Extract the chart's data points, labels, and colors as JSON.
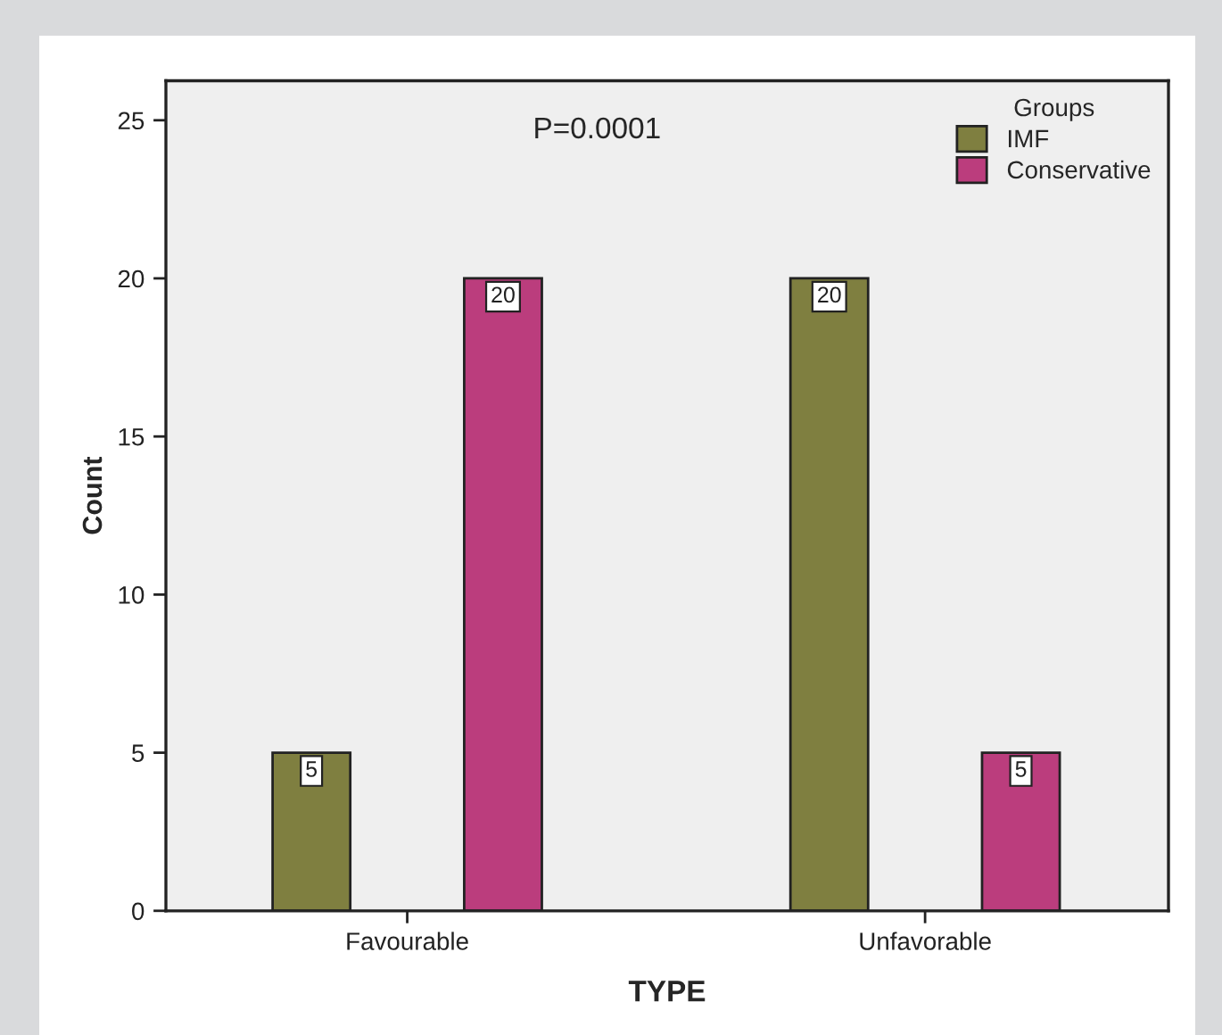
{
  "chart_data": {
    "type": "bar",
    "xlabel": "TYPE",
    "ylabel": "Count",
    "legend_title": "Groups",
    "categories": [
      "Favourable",
      "Unfavorable"
    ],
    "series": [
      {
        "name": "IMF",
        "color": "#7f7f40",
        "values": [
          5,
          20
        ]
      },
      {
        "name": "Conservative",
        "color": "#bb3d7d",
        "values": [
          20,
          5
        ]
      }
    ],
    "ylim": [
      0,
      26.25
    ],
    "yticks": [
      0,
      5,
      10,
      15,
      20,
      25
    ],
    "data_labels": true,
    "grid": false,
    "legend": "top right",
    "annotations": [
      "P=0.0001"
    ]
  }
}
